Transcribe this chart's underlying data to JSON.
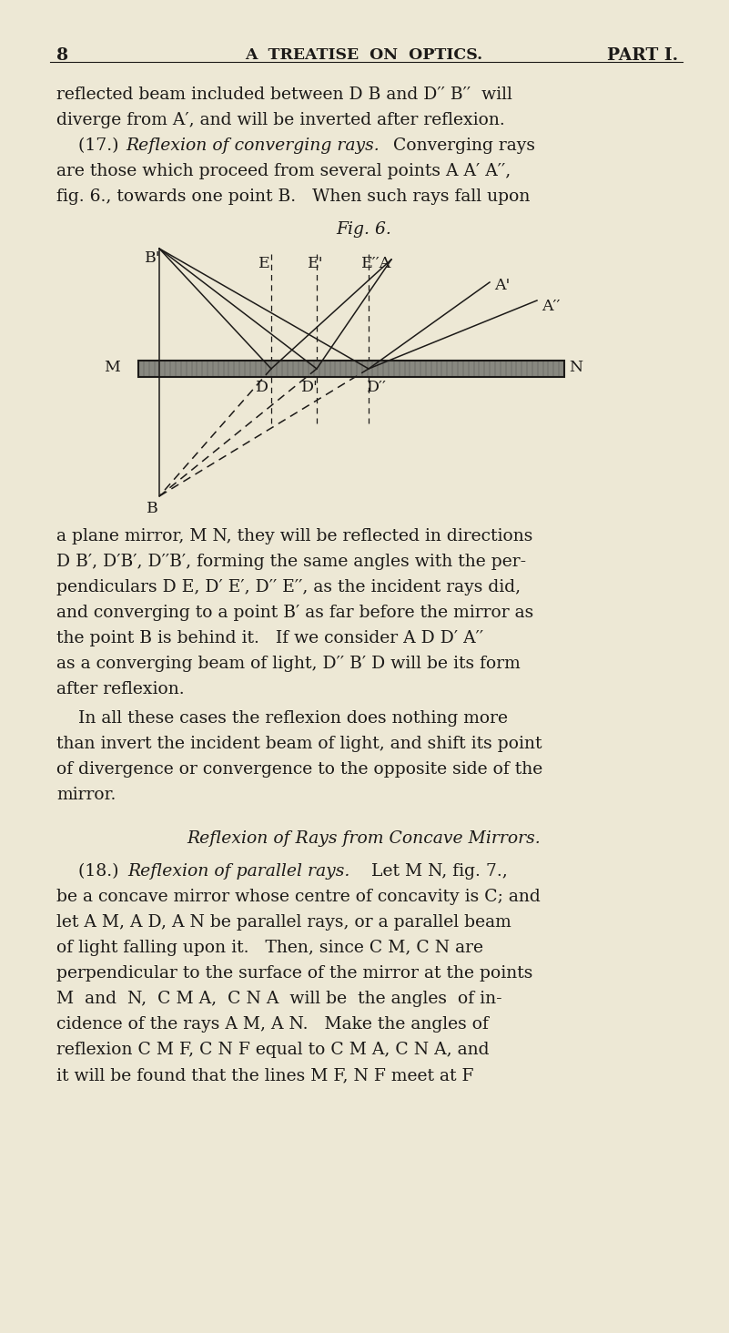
{
  "bg_color": "#ede8d5",
  "page_number": "8",
  "header_center": "A  TREATISE  ON  OPTICS.",
  "header_right": "PART I.",
  "fig_title": "Fig. 6.",
  "para1_lines": [
    "reflected beam included between D B and D′′ B′′  will",
    "diverge from A′, and will be inverted after reflexion."
  ],
  "para1b_prefix": "    (17.) ",
  "para1b_italic": "Reflexion of converging rays.",
  "para1b_rest": "  Converging rays",
  "para1c_lines": [
    "are those which proceed from several points A A′ A′′,",
    "fig. 6., towards one point B.   When such rays fall upon"
  ],
  "para2_lines": [
    "a plane mirror, M N, they will be reflected in directions",
    "D B′, D′B′, D′′B′, forming the same angles with the per-",
    "pendiculars D E, D′ E′, D′′ E′′, as the incident rays did,",
    "and converging to a point B′ as far before the mirror as",
    "the point B is behind it.   If we consider A D D′ A′′",
    "as a converging beam of light, D′′ B′ D will be its form",
    "after reflexion."
  ],
  "para3_lines": [
    "    In all these cases the reflexion does nothing more",
    "than invert the incident beam of light, and shift its point",
    "of divergence or convergence to the opposite side of the",
    "mirror."
  ],
  "section_title": "Reflexion of Rays from Concave Mirrors.",
  "para4_prefix": "    (18.) ",
  "para4_italic": "Reflexion of parallel rays.",
  "para4_rest": "   Let M N, fig. 7.,",
  "para4_lines": [
    "be a concave mirror whose centre of concavity is C; and",
    "let A M, A D, A N be parallel rays, or a parallel beam",
    "of light falling upon it.   Then, since C M, C N are",
    "perpendicular to the surface of the mirror at the points",
    "M  and  N,  C M A,  C N A  will be  the angles  of in-",
    "cidence of the rays A M, A N.   Make the angles of",
    "reflexion C M F, C N F equal to C M A, C N A, and",
    "it will be found that the lines M F, N F meet at F"
  ],
  "text_color": "#1c1a18",
  "line_color": "#1c1a18",
  "mirror_color": "#888880",
  "mirror_border": "#1c1a18"
}
